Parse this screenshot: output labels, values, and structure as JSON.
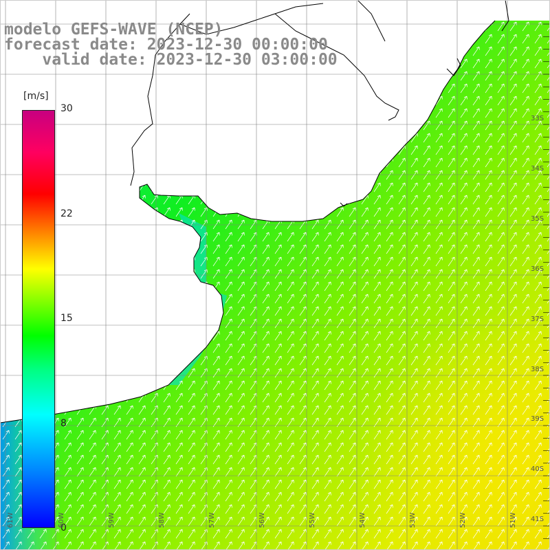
{
  "header": {
    "model": "modelo GEFS-WAVE (NCEP)",
    "forecast": "forecast date: 2023-12-30 00:00:00",
    "valid": "    valid date: 2023-12-30 03:00:00"
  },
  "colorbar": {
    "unit": "[m/s]",
    "ticks": [
      "30",
      "22",
      "15",
      "8",
      "0"
    ]
  },
  "lat_labels": [
    "33S",
    "34S",
    "35S",
    "36S",
    "37S",
    "38S",
    "39S",
    "40S",
    "41S"
  ],
  "lon_labels": [
    "61W",
    "60W",
    "59W",
    "58W",
    "57W",
    "56W",
    "55W",
    "54W",
    "53W",
    "52W",
    "51W"
  ],
  "colors": {
    "land": "#ffffff",
    "coast": "#000000",
    "grid": "#808080",
    "arrows": "#ffffff"
  }
}
